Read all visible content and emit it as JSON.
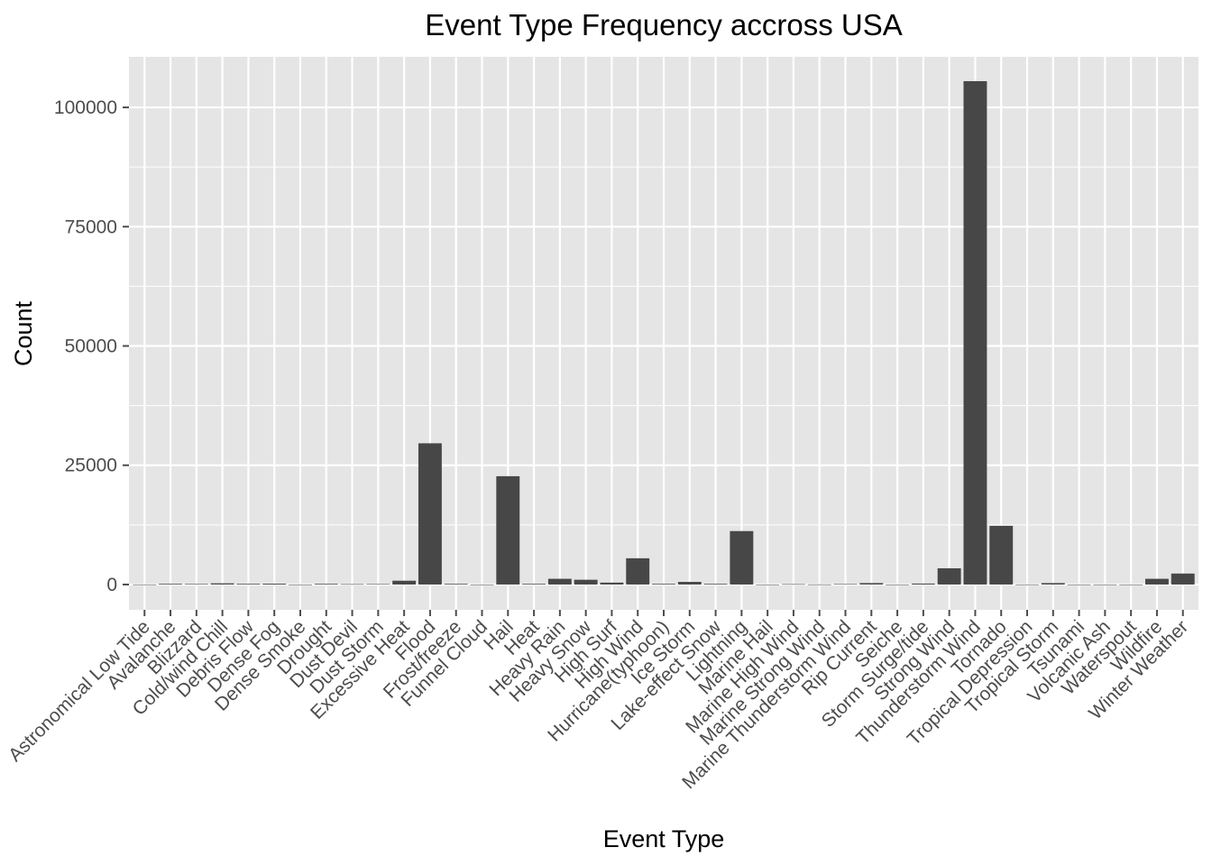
{
  "chart_data": {
    "type": "bar",
    "title": "Event Type Frequency accross USA",
    "xlabel": "Event Type",
    "ylabel": "Count",
    "ylim": [
      -5300,
      110600
    ],
    "yticks": [
      0,
      25000,
      50000,
      75000,
      100000
    ],
    "ytick_labels": [
      "0",
      "25000",
      "50000",
      "75000",
      "100000"
    ],
    "grid": true,
    "colors": {
      "panel": "#e5e5e5",
      "grid": "#ffffff",
      "bar": "#474747",
      "tick": "#4d4d4d",
      "text": "#000000"
    },
    "categories": [
      "Astronomical Low Tide",
      "Avalanche",
      "Blizzard",
      "Cold/wind Chill",
      "Debris Flow",
      "Dense Fog",
      "Dense Smoke",
      "Drought",
      "Dust Devil",
      "Dust Storm",
      "Excessive Heat",
      "Flood",
      "Frost/freeze",
      "Funnel Cloud",
      "Hail",
      "Heat",
      "Heavy Rain",
      "Heavy Snow",
      "High Surf",
      "High Wind",
      "Hurricane(typhoon)",
      "Ice Storm",
      "Lake-effect Snow",
      "Lightning",
      "Marine Hail",
      "Marine High Wind",
      "Marine Strong Wind",
      "Marine Thunderstorm Wind",
      "Rip Current",
      "Seiche",
      "Storm Surge/tide",
      "Strong Wind",
      "Thunderstorm Wind",
      "Tornado",
      "Tropical Depression",
      "Tropical Storm",
      "Tsunami",
      "Volcanic Ash",
      "Waterspout",
      "Wildfire",
      "Winter Weather"
    ],
    "values": [
      20,
      150,
      120,
      250,
      150,
      180,
      10,
      150,
      80,
      100,
      800,
      29600,
      150,
      10,
      22700,
      150,
      1200,
      1000,
      400,
      5500,
      150,
      550,
      150,
      11200,
      10,
      80,
      30,
      100,
      300,
      10,
      200,
      3400,
      105500,
      12300,
      20,
      300,
      10,
      10,
      10,
      1200,
      2300
    ]
  }
}
